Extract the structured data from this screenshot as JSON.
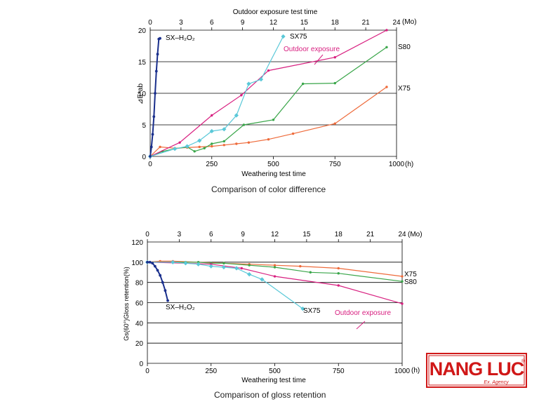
{
  "chart_data": [
    {
      "type": "line",
      "top_axis": {
        "label": "Outdoor exposure test time",
        "ticks": [
          "0",
          "3",
          "6",
          "9",
          "12",
          "15",
          "18",
          "21",
          "24"
        ],
        "unit": "(Mo)"
      },
      "xlabel": "Weathering test time",
      "x_unit": "(h)",
      "xticks": [
        "0",
        "250",
        "500",
        "750",
        "1000"
      ],
      "xlim": [
        0,
        1000
      ],
      "ylabel": "⊿E*ab",
      "ylim": [
        0,
        20
      ],
      "yticks": [
        "0",
        "5",
        "10",
        "15",
        "20"
      ],
      "grid": "horizontal",
      "caption": "Comparison of color difference",
      "series": [
        {
          "name": "SX-H2O2",
          "label": "SX–H₂O₂",
          "color": "#1a2f8c",
          "x": [
            0,
            5,
            10,
            15,
            20,
            25,
            30,
            35,
            40
          ],
          "y": [
            0,
            1.5,
            3.5,
            6.3,
            10,
            13.5,
            16.2,
            18.6,
            18.7
          ]
        },
        {
          "name": "SX75",
          "label": "SX75",
          "color": "#5ac8d8",
          "x": [
            0,
            100,
            150,
            200,
            250,
            300,
            350,
            400,
            450,
            540
          ],
          "y": [
            0,
            1.2,
            1.6,
            2.5,
            4,
            4.3,
            6.5,
            11.5,
            12.2,
            19
          ]
        },
        {
          "name": "Outdoor exposure",
          "label": "Outdoor exposure",
          "color": "#d82080",
          "x": [
            0,
            120,
            250,
            370,
            480,
            750,
            960
          ],
          "y": [
            0,
            2.2,
            6.5,
            9.7,
            13.6,
            15.7,
            20
          ]
        },
        {
          "name": "S80",
          "label": "S80",
          "color": "#3aa64a",
          "x": [
            0,
            50,
            100,
            150,
            180,
            220,
            250,
            300,
            380,
            500,
            620,
            750,
            960
          ],
          "y": [
            0,
            0.8,
            1.2,
            1.5,
            0.8,
            1.3,
            2,
            2.4,
            5,
            5.8,
            11.5,
            11.6,
            17.3
          ]
        },
        {
          "name": "X75",
          "label": "X75",
          "color": "#ee6a3a",
          "x": [
            0,
            40,
            100,
            150,
            200,
            250,
            300,
            350,
            400,
            480,
            580,
            750,
            960
          ],
          "y": [
            0,
            1.5,
            1.3,
            1.4,
            1.5,
            1.6,
            1.8,
            2,
            2.2,
            2.7,
            3.6,
            5.2,
            11
          ]
        }
      ]
    },
    {
      "type": "line",
      "top_axis": {
        "label": "",
        "ticks": [
          "0",
          "3",
          "6",
          "9",
          "12",
          "15",
          "18",
          "21",
          "24"
        ],
        "unit": "(Mo)"
      },
      "xlabel": "Weathering test time",
      "x_unit": "(h)",
      "xticks": [
        "0",
        "250",
        "500",
        "750",
        "1000"
      ],
      "xlim": [
        0,
        1000
      ],
      "ylabel": "Gs(60°)Gloss retention(%)",
      "ylim": [
        0,
        120
      ],
      "yticks": [
        "0",
        "20",
        "40",
        "60",
        "80",
        "100",
        "120"
      ],
      "grid": "horizontal",
      "caption": "Comparison of gloss retention",
      "series": [
        {
          "name": "SX-H2O2",
          "label": "SX–H₂O₂",
          "color": "#1a2f8c",
          "x": [
            0,
            10,
            20,
            30,
            40,
            50,
            60,
            70,
            80
          ],
          "y": [
            100,
            100,
            99,
            96,
            92,
            87,
            80,
            72,
            62
          ]
        },
        {
          "name": "SX75",
          "label": "SX75",
          "color": "#5ac8d8",
          "x": [
            0,
            100,
            150,
            200,
            250,
            300,
            350,
            400,
            450,
            610
          ],
          "y": [
            100,
            100,
            99,
            98,
            96,
            95,
            94,
            88,
            83,
            54
          ]
        },
        {
          "name": "Outdoor exposure",
          "label": "Outdoor exposure",
          "color": "#d82080",
          "x": [
            0,
            150,
            250,
            370,
            500,
            750,
            1000
          ],
          "y": [
            100,
            99,
            98,
            94,
            86,
            77,
            59
          ]
        },
        {
          "name": "S80",
          "label": "S80",
          "color": "#3aa64a",
          "x": [
            0,
            100,
            150,
            200,
            250,
            300,
            400,
            500,
            640,
            750,
            1000
          ],
          "y": [
            100,
            100,
            100,
            100,
            99,
            99,
            97,
            95,
            90,
            89,
            81
          ]
        },
        {
          "name": "X75",
          "label": "X75",
          "color": "#ee6a3a",
          "x": [
            0,
            50,
            100,
            200,
            300,
            400,
            500,
            600,
            750,
            1000
          ],
          "y": [
            100,
            101,
            101,
            100,
            99,
            98,
            97,
            96,
            94,
            86
          ]
        }
      ]
    }
  ],
  "logo": {
    "brand": "NANG LUC",
    "tagline": "Ex. Agency",
    "registered": "®",
    "frame_color": "#d01818"
  }
}
